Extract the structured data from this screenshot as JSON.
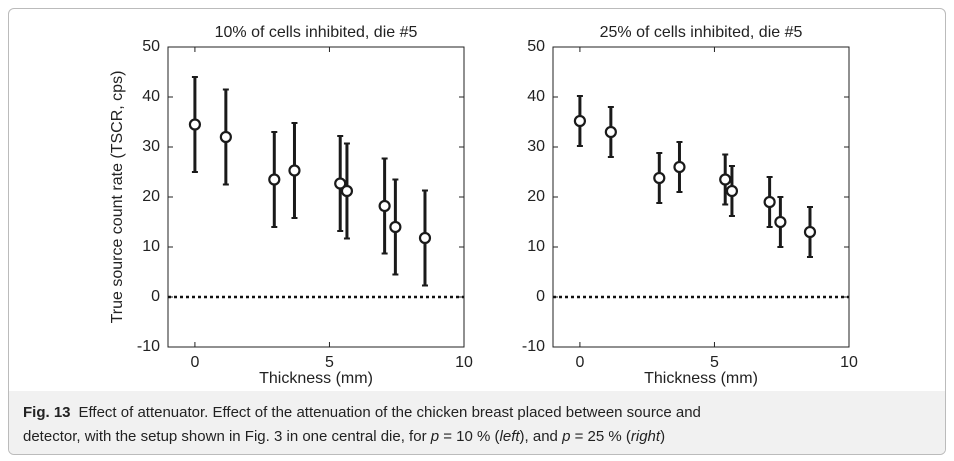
{
  "chart_data": [
    {
      "type": "errorbar",
      "title": "10% of cells inhibited, die #5",
      "xlabel": "Thickness (mm)",
      "ylabel": "True source count rate (TSCR, cps)",
      "x": [
        0,
        1.15,
        2.95,
        3.7,
        5.4,
        5.65,
        7.05,
        7.45,
        8.55
      ],
      "values": [
        34.5,
        32,
        23.5,
        25.3,
        22.7,
        21.2,
        18.2,
        14,
        11.8
      ],
      "errors": [
        9.5,
        9.5,
        9.5,
        9.5,
        9.5,
        9.5,
        9.5,
        9.5,
        9.5
      ],
      "color": "#1a1a1a",
      "hline": 0,
      "xlim": [
        -1,
        10
      ],
      "xticks": [
        0,
        5,
        10
      ],
      "ylim": [
        -10,
        50
      ],
      "yticks": [
        -10,
        0,
        10,
        20,
        30,
        40,
        50
      ]
    },
    {
      "type": "errorbar",
      "title": "25% of cells inhibited, die #5",
      "xlabel": "Thickness (mm)",
      "x": [
        0,
        1.15,
        2.95,
        3.7,
        5.4,
        5.65,
        7.05,
        7.45,
        8.55
      ],
      "values": [
        35.2,
        33,
        23.8,
        26,
        23.5,
        21.2,
        19,
        15,
        13
      ],
      "errors": [
        5,
        5,
        5,
        5,
        5,
        5,
        5,
        5,
        5
      ],
      "color": "#1a1a1a",
      "hline": 0,
      "xlim": [
        -1,
        10
      ],
      "xticks": [
        0,
        5,
        10
      ],
      "ylim": [
        -10,
        50
      ],
      "yticks": [
        -10,
        0,
        10,
        20,
        30,
        40,
        50
      ]
    }
  ],
  "caption": {
    "label": "Fig. 13",
    "lines": [
      [
        {
          "text": "Effect of attenuator. Effect of the attenuation of the chicken breast placed between source and"
        }
      ],
      [
        {
          "text": "detector, with the setup shown in Fig. 3 in one central die, for "
        },
        {
          "text": "p",
          "italic": true
        },
        {
          "text": " = 10 % ("
        },
        {
          "text": "left",
          "italic": true
        },
        {
          "text": "), and "
        },
        {
          "text": "p",
          "italic": true
        },
        {
          "text": " = 25 % ("
        },
        {
          "text": "right",
          "italic": true
        },
        {
          "text": ")"
        }
      ]
    ]
  }
}
